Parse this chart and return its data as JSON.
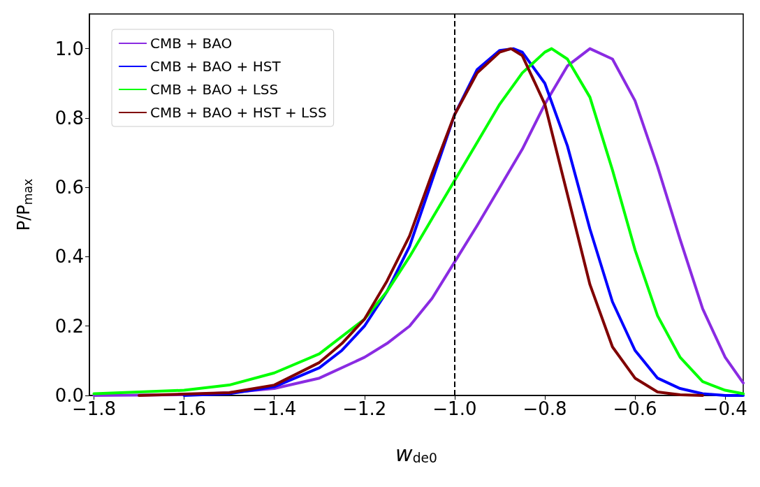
{
  "chart_data": {
    "type": "line",
    "xlabel": "w$_{de0}$",
    "ylabel": "P/P$_{max}$",
    "xlim": [
      -1.81,
      -0.36
    ],
    "ylim": [
      0,
      1.1
    ],
    "xticks": [
      {
        "value": -1.8,
        "label": "−1.8"
      },
      {
        "value": -1.6,
        "label": "−1.6"
      },
      {
        "value": -1.4,
        "label": "−1.4"
      },
      {
        "value": -1.2,
        "label": "−1.2"
      },
      {
        "value": -1.0,
        "label": "−1.0"
      },
      {
        "value": -0.8,
        "label": "−0.8"
      },
      {
        "value": -0.6,
        "label": "−0.6"
      },
      {
        "value": -0.4,
        "label": "−0.4"
      }
    ],
    "yticks": [
      {
        "value": 0,
        "label": "0.0"
      },
      {
        "value": 0.2,
        "label": "0.2"
      },
      {
        "value": 0.4,
        "label": "0.4"
      },
      {
        "value": 0.6,
        "label": "0.6"
      },
      {
        "value": 0.8,
        "label": "0.8"
      },
      {
        "value": 1.0,
        "label": "1.0"
      }
    ],
    "grid": false,
    "legend": "top left",
    "marker": "none",
    "line_style": "solid",
    "ref_lines": [
      {
        "axis": "x",
        "value": -1.0,
        "color": "#000000",
        "line_style": "dashed"
      }
    ],
    "series": [
      {
        "name": "CMB + BAO",
        "color": "#8a2be2",
        "x": [
          -1.8,
          -1.6,
          -1.5,
          -1.4,
          -1.3,
          -1.2,
          -1.15,
          -1.1,
          -1.05,
          -1.0,
          -0.95,
          -0.9,
          -0.85,
          -0.8,
          -0.75,
          -0.7,
          -0.65,
          -0.6,
          -0.55,
          -0.5,
          -0.45,
          -0.4,
          -0.36
        ],
        "values": [
          0,
          0.002,
          0.008,
          0.02,
          0.05,
          0.11,
          0.15,
          0.2,
          0.28,
          0.385,
          0.49,
          0.6,
          0.71,
          0.84,
          0.95,
          1.0,
          0.97,
          0.85,
          0.66,
          0.45,
          0.25,
          0.11,
          0.036
        ]
      },
      {
        "name": "CMB + BAO + HST",
        "color": "#0000ff",
        "x": [
          -1.6,
          -1.5,
          -1.4,
          -1.3,
          -1.25,
          -1.2,
          -1.15,
          -1.1,
          -1.05,
          -1.0,
          -0.95,
          -0.9,
          -0.87,
          -0.85,
          -0.8,
          -0.75,
          -0.7,
          -0.65,
          -0.6,
          -0.55,
          -0.5,
          -0.45,
          -0.4,
          -0.36
        ],
        "values": [
          0,
          0.005,
          0.025,
          0.08,
          0.13,
          0.2,
          0.3,
          0.43,
          0.62,
          0.81,
          0.94,
          0.995,
          1.0,
          0.99,
          0.9,
          0.72,
          0.48,
          0.27,
          0.13,
          0.05,
          0.02,
          0.005,
          0,
          0
        ]
      },
      {
        "name": "CMB + BAO + LSS",
        "color": "#00ff00",
        "x": [
          -1.8,
          -1.6,
          -1.5,
          -1.4,
          -1.3,
          -1.2,
          -1.15,
          -1.1,
          -1.05,
          -1.0,
          -0.95,
          -0.9,
          -0.85,
          -0.8,
          -0.785,
          -0.75,
          -0.7,
          -0.65,
          -0.6,
          -0.55,
          -0.5,
          -0.45,
          -0.4,
          -0.36
        ],
        "values": [
          0.005,
          0.015,
          0.03,
          0.065,
          0.12,
          0.22,
          0.3,
          0.4,
          0.51,
          0.62,
          0.73,
          0.84,
          0.93,
          0.99,
          1.0,
          0.97,
          0.86,
          0.65,
          0.42,
          0.23,
          0.11,
          0.04,
          0.015,
          0.005
        ]
      },
      {
        "name": "CMB + BAO + HST + LSS",
        "color": "#800000",
        "x": [
          -1.7,
          -1.5,
          -1.4,
          -1.3,
          -1.25,
          -1.2,
          -1.15,
          -1.1,
          -1.05,
          -1.0,
          -0.95,
          -0.9,
          -0.875,
          -0.85,
          -0.8,
          -0.75,
          -0.7,
          -0.65,
          -0.6,
          -0.55,
          -0.5,
          -0.45
        ],
        "values": [
          0,
          0.008,
          0.03,
          0.095,
          0.15,
          0.22,
          0.33,
          0.46,
          0.64,
          0.81,
          0.93,
          0.99,
          1.0,
          0.98,
          0.84,
          0.58,
          0.32,
          0.14,
          0.05,
          0.01,
          0.002,
          0
        ]
      }
    ]
  }
}
